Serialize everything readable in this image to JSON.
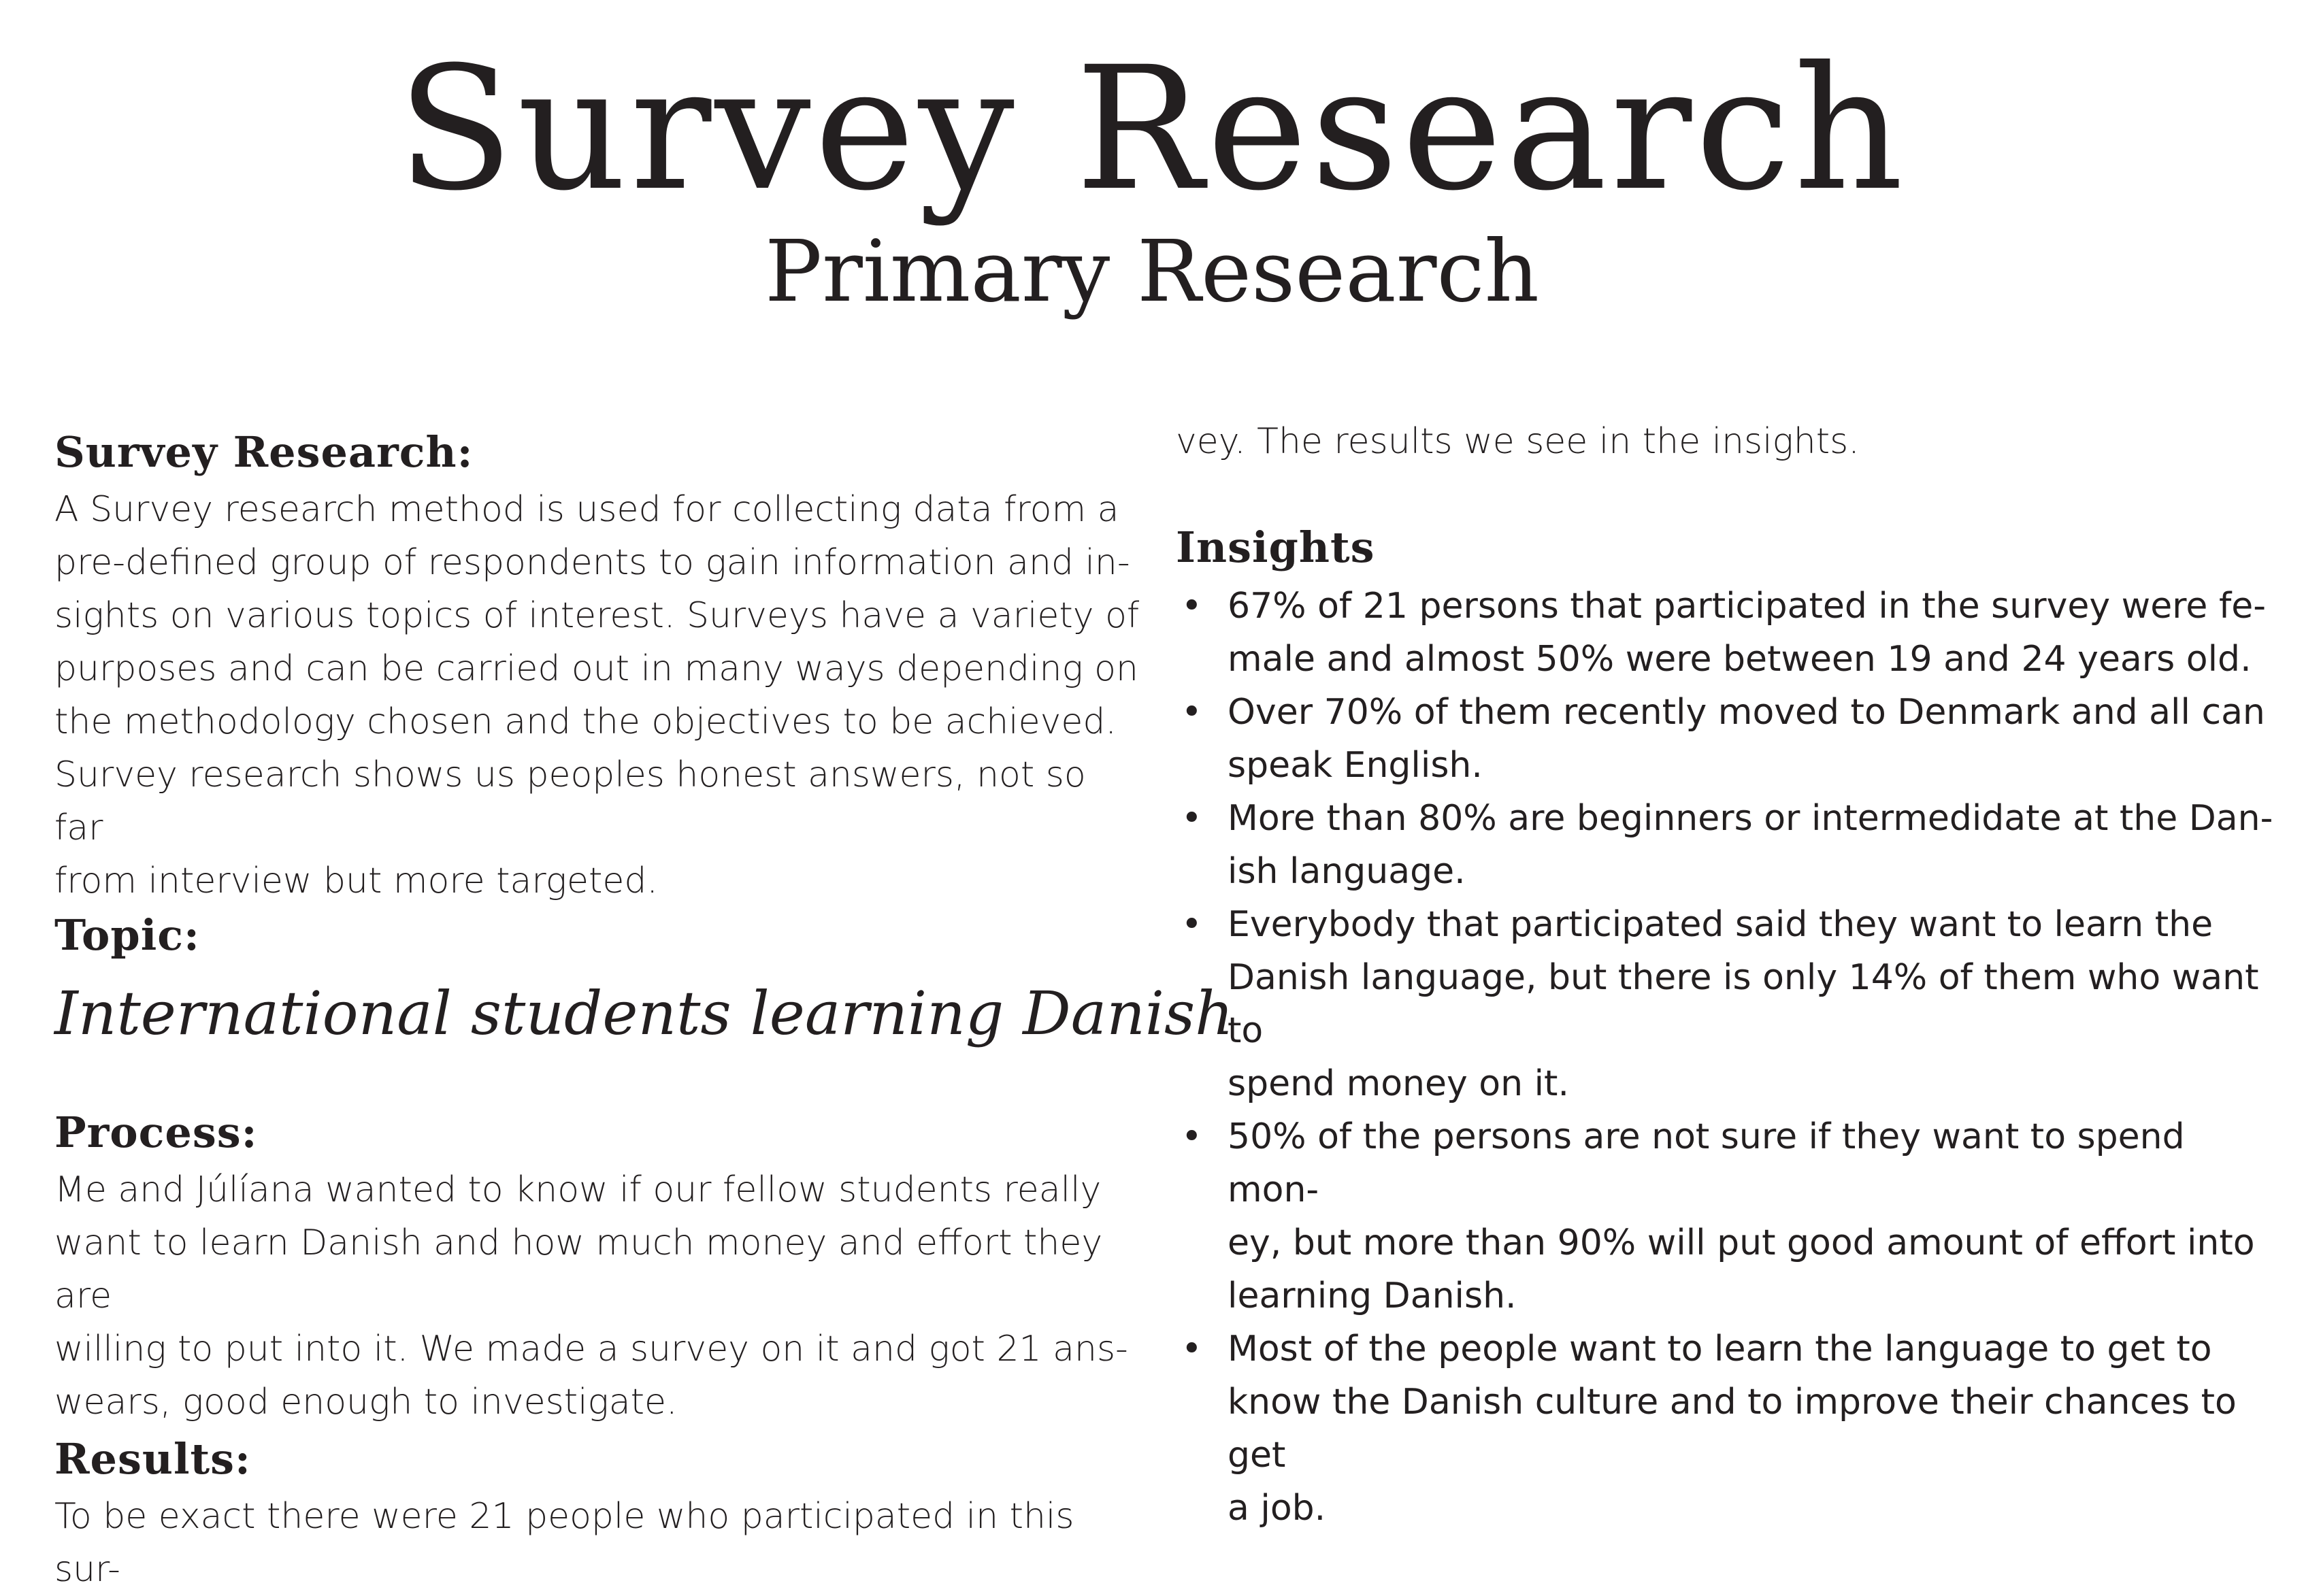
{
  "header": {
    "title": "Survey Research",
    "subtitle": "Primary Research"
  },
  "left": {
    "survey_heading": "Survey Research:",
    "survey_text": "A Survey research method is used for collecting data from a\npre-defined group of respondents to gain information and in-\nsights on various topics of interest. Surveys have a variety of\npurposes and can be carried out in many ways depending on\nthe methodology chosen and the objectives to be achieved.\nSurvey research shows us peoples honest answers, not so far\nfrom interview but more targeted.",
    "topic_heading": "Topic:",
    "topic_text": "International students learning Danish",
    "process_heading": "Process:",
    "process_text": "Me and Júlíana wanted to know if our fellow students really\nwant to learn Danish and how much money and effort they are\nwilling to put into it. We made a survey on it and got 21 ans-\nwears, good enough to investigate.",
    "results_heading": "Results:",
    "results_text": "To be exact there were 21 people who participated in this sur-"
  },
  "right": {
    "results_continued": "vey. The results we see in the insights.",
    "insights_heading": "Insights",
    "insights": [
      "67% of 21 persons that participated in the survey were fe-\nmale and almost 50% were between 19 and 24 years old.",
      "Over 70% of them recently moved to Denmark and all can\nspeak English.",
      "More than 80% are beginners or intermedidate at the Dan-\nish language.",
      "Everybody that participated said they want to learn the\nDanish language, but there is only 14% of them who want to\nspend money on it.",
      "50% of the persons are not sure if they want to spend mon-\ney, but more than 90% will put good amount of effort into\nlearning Danish.",
      "Most of the people want to learn the language to get to\nknow the Danish culture and to improve their chances to get\na job."
    ],
    "bullet": "•"
  }
}
